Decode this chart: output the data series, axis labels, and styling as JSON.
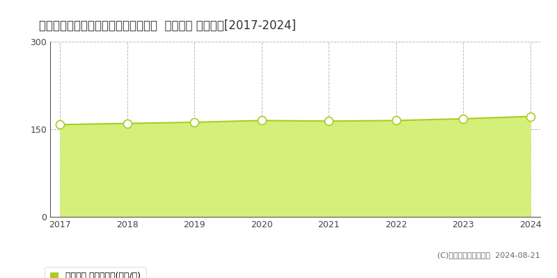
{
  "title": "東京都中野区沼袋１丁目２５７番９外  地価公示 地価推移[2017-2024]",
  "years": [
    2017,
    2018,
    2019,
    2020,
    2021,
    2022,
    2023,
    2024
  ],
  "values": [
    158,
    160,
    162,
    165,
    164,
    165,
    168,
    172
  ],
  "ylim": [
    0,
    300
  ],
  "yticks": [
    0,
    150,
    300
  ],
  "line_color": "#aacc22",
  "fill_color": "#d4f07a",
  "fill_alpha": 1.0,
  "marker_facecolor": "white",
  "marker_edge_color": "#aacc22",
  "marker_size": 5,
  "background_color": "#ffffff",
  "plot_bg_color": "#ffffff",
  "grid_color": "#aaaaaa",
  "grid_style": "--",
  "legend_label": "地価公示 平均坪単価(万円/坪)",
  "legend_color": "#aacc22",
  "copyright_text": "(C)土地価格ドットコム  2024-08-21",
  "title_fontsize": 12,
  "tick_fontsize": 9,
  "legend_fontsize": 9
}
